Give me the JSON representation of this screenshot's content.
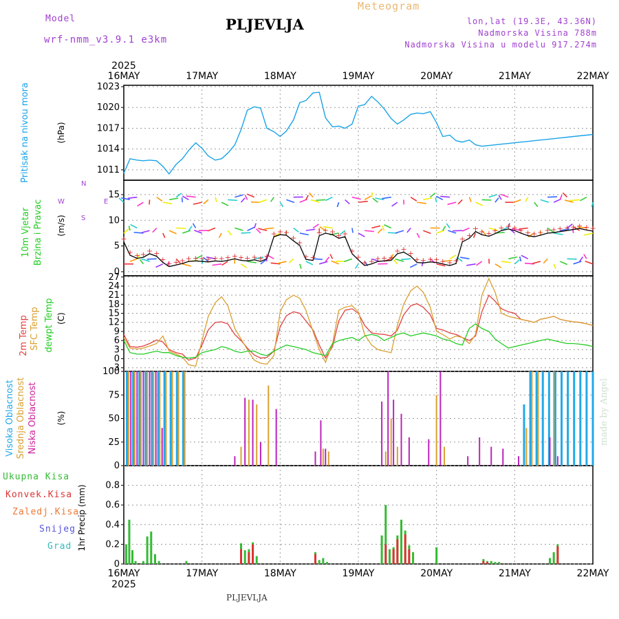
{
  "header": {
    "model_label": "Model",
    "model_name": "wrf-nmm_v3.9.1 e3km",
    "station": "PLJEVLJA",
    "meteogram": "Meteogram",
    "lonlat": "lon,lat (19.3E, 43.36N)",
    "altitude": "Nadmorska Visina 788m",
    "model_altitude": "Nadmorska Visina u modelu 917.274m",
    "footer_station": "PLJEVLJA",
    "watermark": "made by Angel"
  },
  "colors": {
    "pressure": "#1aa3e8",
    "wind_obs": "#dd3333",
    "wind_model": "#000000",
    "t2m": "#e04040",
    "sfc": "#d9a030",
    "dew": "#22cc22",
    "high_cloud": "#22a8e8",
    "mid_cloud": "#d9a030",
    "low_cloud": "#bb22bb",
    "precip_total": "#33bb33",
    "precip_conv": "#dd3333",
    "precip_snow": "#5555dd",
    "precip_grad": "#33bbbb",
    "precip_zal": "#ee7733",
    "model_purple": "#a040d0"
  },
  "chart_data": [
    {
      "type": "line",
      "title": "Pritisak na nivou mora",
      "ylabel": "(hPa)",
      "ylim": [
        1009.5,
        1023.2
      ],
      "yticks": [
        "1011",
        "1014",
        "1017",
        "1020",
        "1023"
      ],
      "x_days": [
        "16MAY",
        "17MAY",
        "18MAY",
        "19MAY",
        "20MAY",
        "21MAY",
        "22MAY"
      ],
      "x_year": "2025",
      "series": [
        {
          "name": "Pritisak",
          "x": [
            0,
            0.08,
            0.17,
            0.25,
            0.33,
            0.42,
            0.5,
            0.58,
            0.67,
            0.75,
            0.83,
            0.92,
            1,
            1.08,
            1.17,
            1.25,
            1.33,
            1.42,
            1.5,
            1.58,
            1.67,
            1.75,
            1.83,
            1.92,
            2,
            2.08,
            2.17,
            2.25,
            2.33,
            2.42,
            2.5,
            2.58,
            2.67,
            2.75,
            2.83,
            2.92,
            3,
            3.08,
            3.17,
            3.25,
            3.33,
            3.42,
            3.5,
            3.58,
            3.67,
            3.75,
            3.83,
            3.92,
            4,
            4.08,
            4.17,
            4.25,
            4.33,
            4.42,
            4.5,
            4.58,
            4.67,
            4.75,
            4.83,
            4.92,
            5,
            5.08,
            5.17,
            5.25,
            5.33,
            5.42,
            5.5,
            5.58,
            5.67,
            5.75,
            5.83,
            5.92,
            6
          ],
          "values": [
            1010.5,
            1012.6,
            1012.4,
            1012.3,
            1012.4,
            1012.3,
            1011.5,
            1010.4,
            1011.8,
            1012.6,
            1013.8,
            1014.9,
            1014.1,
            1013.0,
            1012.4,
            1012.6,
            1013.4,
            1014.6,
            1016.8,
            1019.6,
            1020.1,
            1019.9,
            1017.0,
            1016.5,
            1015.8,
            1016.6,
            1018.2,
            1020.7,
            1021.0,
            1022.1,
            1022.2,
            1018.5,
            1017.2,
            1017.3,
            1017.0,
            1017.6,
            1020.2,
            1020.4,
            1021.6,
            1020.8,
            1019.8,
            1018.4,
            1017.6,
            1018.2,
            1019.0,
            1019.2,
            1019.1,
            1019.4,
            1017.8,
            1015.8,
            1016.0,
            1015.2,
            1015.0,
            1015.3,
            1014.6,
            1014.4,
            1014.5,
            1014.6,
            1014.7,
            1014.8,
            1014.9,
            1015.0,
            1015.1,
            1015.2,
            1015.3,
            1015.4,
            1015.5,
            1015.6,
            1015.7,
            1015.8,
            1015.9,
            1016.0,
            1016.1
          ]
        }
      ]
    },
    {
      "type": "line",
      "title": "10m Vjetar Brzina i Pravac",
      "ylabel": "(m/s)",
      "ylim": [
        -0.8,
        17.8
      ],
      "yticks": [
        "0",
        "5",
        "10",
        "15"
      ],
      "compass": {
        "n": "N",
        "e": "E",
        "w": "W",
        "s": "S",
        "left": "<-",
        "right": "->",
        "label": "o<-|->"
      },
      "series": [
        {
          "name": "Brzina",
          "x": [
            0,
            0.08,
            0.17,
            0.25,
            0.33,
            0.42,
            0.5,
            0.58,
            0.67,
            0.75,
            0.83,
            0.92,
            1,
            1.08,
            1.17,
            1.25,
            1.33,
            1.42,
            1.5,
            1.58,
            1.67,
            1.75,
            1.83,
            1.92,
            2,
            2.08,
            2.17,
            2.25,
            2.33,
            2.42,
            2.5,
            2.58,
            2.67,
            2.75,
            2.83,
            2.92,
            3,
            3.08,
            3.17,
            3.25,
            3.33,
            3.42,
            3.5,
            3.58,
            3.67,
            3.75,
            3.83,
            3.92,
            4,
            4.08,
            4.17,
            4.25,
            4.33,
            4.42,
            4.5,
            4.58,
            4.67,
            4.75,
            4.83,
            4.92,
            5,
            5.08,
            5.17,
            5.25,
            5.33,
            5.42,
            5.5,
            5.58,
            5.67,
            5.75,
            5.83,
            5.92,
            6
          ],
          "values": [
            5.8,
            3.2,
            2.6,
            2.8,
            3.5,
            3.0,
            1.8,
            1.0,
            1.3,
            1.6,
            2.0,
            2.1,
            2.0,
            1.9,
            2.1,
            2.0,
            2.2,
            2.5,
            2.2,
            2.1,
            2.3,
            2.0,
            2.5,
            6.8,
            7.2,
            7.1,
            6.0,
            5.1,
            2.4,
            2.2,
            7.0,
            7.5,
            7.2,
            6.5,
            6.8,
            3.5,
            2.3,
            1.2,
            1.5,
            2.0,
            2.1,
            2.2,
            3.5,
            3.8,
            3.0,
            1.8,
            1.7,
            1.9,
            1.8,
            1.5,
            1.2,
            1.6,
            5.8,
            6.5,
            7.8,
            7.2,
            6.9,
            7.4,
            8.0,
            8.3,
            8.0,
            7.5,
            7.0,
            6.8,
            7.1,
            7.5,
            7.6,
            7.8,
            8.0,
            8.2,
            8.4,
            8.1,
            7.9
          ]
        }
      ]
    },
    {
      "type": "line",
      "title": "2m Temp / SFC Temp / dewpt Temp",
      "ylabel": "(C)",
      "ylim": [
        -4.2,
        27.4
      ],
      "yticks": [
        "-3",
        "0",
        "3",
        "6",
        "9",
        "12",
        "15",
        "18",
        "21",
        "24",
        "27"
      ],
      "x": [
        0,
        0.08,
        0.17,
        0.25,
        0.33,
        0.42,
        0.5,
        0.58,
        0.67,
        0.75,
        0.83,
        0.92,
        1,
        1.08,
        1.17,
        1.25,
        1.33,
        1.42,
        1.5,
        1.58,
        1.67,
        1.75,
        1.83,
        1.92,
        2,
        2.08,
        2.17,
        2.25,
        2.33,
        2.42,
        2.5,
        2.58,
        2.67,
        2.75,
        2.83,
        2.92,
        3,
        3.08,
        3.17,
        3.25,
        3.33,
        3.42,
        3.5,
        3.58,
        3.67,
        3.75,
        3.83,
        3.92,
        4,
        4.08,
        4.17,
        4.25,
        4.33,
        4.42,
        4.5,
        4.58,
        4.67,
        4.75,
        4.83,
        4.92,
        5,
        5.08,
        5.17,
        5.25,
        5.33,
        5.42,
        5.5,
        5.58,
        5.67,
        5.75,
        5.83,
        5.92,
        6
      ],
      "series": [
        {
          "name": "2m Temp",
          "values": [
            8,
            4,
            3.8,
            4.2,
            5,
            6.2,
            5.5,
            3.0,
            2.0,
            1.5,
            -0.5,
            0.2,
            4.5,
            9.5,
            12.0,
            12.2,
            11.5,
            8.0,
            6.0,
            3.5,
            1.2,
            0.2,
            0.4,
            2.5,
            10.5,
            14.2,
            15.5,
            15.0,
            12.5,
            9.5,
            4.5,
            0.2,
            4.0,
            12.5,
            16.0,
            16.5,
            15.0,
            11.0,
            8.5,
            8.2,
            8.0,
            7.5,
            9.5,
            14.5,
            17.5,
            18.2,
            17.0,
            14.5,
            10.0,
            9.5,
            8.5,
            8.0,
            7.0,
            6.0,
            7.5,
            15.5,
            21.0,
            19.0,
            16.5,
            15.5,
            15.0,
            13.0,
            12.5,
            12.0,
            13.0,
            13.5,
            14.0,
            13.0,
            12.5,
            12.2,
            12.0,
            11.5,
            11.0
          ]
        },
        {
          "name": "SFC Temp",
          "values": [
            7,
            3.5,
            3.2,
            3.5,
            4.2,
            5.0,
            7.5,
            2.5,
            1.5,
            0.5,
            -2.0,
            -2.5,
            6.0,
            14.0,
            18.5,
            20.5,
            17.5,
            10.0,
            6.5,
            3.0,
            -0.5,
            -1.5,
            -1.8,
            1.0,
            15.5,
            19.5,
            21.0,
            20.0,
            16.0,
            9.0,
            3.0,
            -1.2,
            5.0,
            16.0,
            17.0,
            17.5,
            15.5,
            8.0,
            4.5,
            3.0,
            2.5,
            2.0,
            11.0,
            18.0,
            22.5,
            24.0,
            22.0,
            17.0,
            9.0,
            8.0,
            6.5,
            7.5,
            7.0,
            5.0,
            8.0,
            21.0,
            26.5,
            22.0,
            15.0,
            14.0,
            13.5,
            13.0,
            12.5,
            12.0,
            13.0,
            13.5,
            14.0,
            13.0,
            12.5,
            12.2,
            12.0,
            11.5,
            11.0
          ]
        },
        {
          "name": "dewpt Temp",
          "values": [
            6,
            2.0,
            1.5,
            1.5,
            2.0,
            2.5,
            2.0,
            2.0,
            1.0,
            0.5,
            0.2,
            0.5,
            2.0,
            2.5,
            3.0,
            4.0,
            3.5,
            2.5,
            2.0,
            2.5,
            2.5,
            1.5,
            1.0,
            2.5,
            3.5,
            4.5,
            4.0,
            3.5,
            3.0,
            2.0,
            1.5,
            1.0,
            5.0,
            6.0,
            6.5,
            7.0,
            6.0,
            7.5,
            8.0,
            7.5,
            6.0,
            7.0,
            8.0,
            8.5,
            7.5,
            8.0,
            8.5,
            8.0,
            7.5,
            6.5,
            6.0,
            5.0,
            4.5,
            10.0,
            11.5,
            10.0,
            9.0,
            6.5,
            5.0,
            3.5,
            4.0,
            4.5,
            5.0,
            5.5,
            6.0,
            6.5,
            6.0,
            5.5,
            5.0,
            5.0,
            4.8,
            4.5,
            4.0
          ]
        }
      ]
    },
    {
      "type": "bar",
      "title": "Visoka / Srednja / Niska Oblacnost",
      "ylabel": "(%)",
      "ylim": [
        0,
        100
      ],
      "yticks": [
        "0",
        "25",
        "50",
        "75",
        "100"
      ],
      "series": [
        {
          "name": "Visoka",
          "x": [
            0.04,
            0.12,
            0.2,
            0.28,
            0.36,
            0.44,
            0.52,
            0.6,
            0.68,
            0.76,
            5.12,
            5.2,
            5.28,
            5.36,
            5.44,
            5.52,
            5.6,
            5.68,
            5.76,
            5.84,
            5.92,
            6.0
          ],
          "values": [
            100,
            100,
            100,
            100,
            100,
            100,
            100,
            100,
            100,
            100,
            65,
            100,
            100,
            100,
            100,
            100,
            100,
            100,
            100,
            100,
            100,
            100
          ]
        },
        {
          "name": "Srednja",
          "x": [
            0.06,
            0.14,
            0.22,
            0.3,
            0.38,
            0.46,
            0.54,
            0.62,
            0.7,
            0.78,
            1.5,
            1.6,
            1.7,
            1.85,
            2.55,
            2.62,
            3.35,
            3.42,
            3.5,
            4.0,
            4.1,
            5.15,
            5.22,
            5.3,
            5.5
          ],
          "values": [
            100,
            100,
            100,
            100,
            100,
            100,
            100,
            100,
            100,
            100,
            20,
            70,
            65,
            85,
            18,
            15,
            15,
            50,
            20,
            75,
            20,
            40,
            100,
            100,
            100
          ]
        },
        {
          "name": "Niska",
          "x": [
            0.09,
            0.17,
            0.25,
            0.33,
            0.41,
            0.49,
            1.42,
            1.55,
            1.65,
            1.75,
            1.95,
            2.45,
            2.52,
            2.58,
            3.3,
            3.38,
            3.45,
            3.55,
            3.65,
            3.9,
            4.05,
            4.4,
            4.55,
            4.7,
            4.85,
            5.05,
            5.45,
            5.55
          ],
          "values": [
            100,
            100,
            100,
            100,
            100,
            40,
            10,
            72,
            70,
            25,
            60,
            15,
            48,
            18,
            68,
            100,
            70,
            55,
            30,
            28,
            100,
            10,
            30,
            20,
            18,
            10,
            30,
            10
          ]
        }
      ]
    },
    {
      "type": "bar",
      "title": "1hr Precip",
      "ylabel": "1hr Precip (mm)",
      "ylim": [
        0,
        1.0
      ],
      "yticks": [
        "0",
        "0.2",
        "0.4",
        "0.6",
        "0.8"
      ],
      "legend": [
        "Ukupna Kisa",
        "Konvek.Kisa",
        "Zaledj.Kisa",
        "Snijeg",
        "Grad"
      ],
      "series": [
        {
          "name": "Ukupna Kisa",
          "x": [
            0.03,
            0.07,
            0.11,
            0.15,
            0.25,
            0.3,
            0.35,
            0.4,
            0.45,
            0.8,
            1.5,
            1.55,
            1.6,
            1.65,
            1.7,
            2.45,
            2.5,
            2.55,
            2.6,
            3.3,
            3.35,
            3.4,
            3.45,
            3.5,
            3.55,
            3.6,
            3.65,
            3.7,
            4.0,
            4.6,
            4.65,
            4.7,
            4.75,
            4.8,
            5.45,
            5.5,
            5.55
          ],
          "values": [
            0.2,
            0.45,
            0.14,
            0.03,
            0.03,
            0.28,
            0.33,
            0.1,
            0.03,
            0.03,
            0.21,
            0.14,
            0.15,
            0.22,
            0.08,
            0.12,
            0.04,
            0.06,
            0.02,
            0.29,
            0.6,
            0.15,
            0.17,
            0.29,
            0.45,
            0.34,
            0.19,
            0.12,
            0.17,
            0.05,
            0.03,
            0.03,
            0.02,
            0.02,
            0.06,
            0.12,
            0.2
          ]
        },
        {
          "name": "Konvek.Kisa",
          "x": [
            1.5,
            1.6,
            1.65,
            2.45,
            3.35,
            3.45,
            3.5,
            3.6,
            3.65,
            4.6,
            4.65,
            5.55
          ],
          "values": [
            0.15,
            0.12,
            0.2,
            0.1,
            0.2,
            0.15,
            0.25,
            0.3,
            0.15,
            0.03,
            0.02,
            0.18
          ]
        }
      ]
    }
  ]
}
